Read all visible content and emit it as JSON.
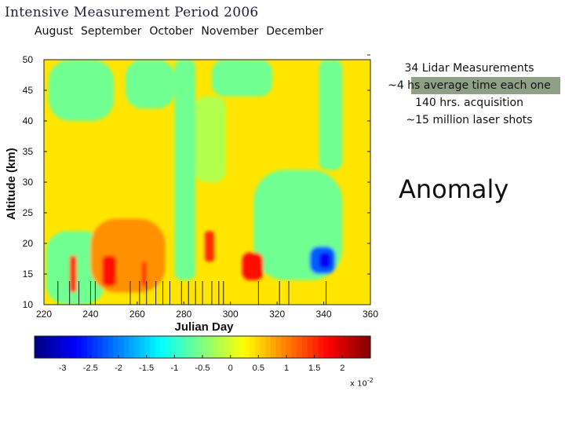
{
  "slide": {
    "title": "Intensive Measurement Period 2006",
    "months": [
      "August",
      "September",
      "October",
      "November",
      "December"
    ],
    "info_lines": [
      "34 Lidar Measurements",
      "~4 hs average time each one",
      "140 hrs. acquisition",
      "~15 million laser shots"
    ],
    "anomaly_label": "Anomaly"
  },
  "chart_data": {
    "type": "heatmap",
    "title": "",
    "xlabel": "Julian Day",
    "ylabel": "Altitude (km)",
    "xlim": [
      220,
      360
    ],
    "ylim": [
      10,
      50
    ],
    "x_ticks": [
      "220",
      "240",
      "260",
      "280",
      "300",
      "320",
      "340",
      "360"
    ],
    "y_ticks": [
      "10",
      "15",
      "20",
      "25",
      "30",
      "35",
      "40",
      "45",
      "50"
    ],
    "colorbar": {
      "ticks": [
        "-3",
        "-2.5",
        "-2",
        "-1.5",
        "-1",
        "-0.5",
        "0",
        "0.5",
        "1",
        "1.5",
        "2"
      ],
      "range": [
        -3.5,
        2.5
      ],
      "exponent_label": "x 10",
      "exponent_power": "-2"
    },
    "measurement_days": [
      226,
      231,
      235,
      240,
      242,
      257,
      261,
      264,
      268,
      271,
      274,
      279,
      282,
      285,
      288,
      292,
      295,
      297,
      312,
      321,
      325,
      341
    ],
    "background_value": 0.004,
    "features": [
      {
        "label": "upper-cyan-band",
        "day_from": 222,
        "day_to": 250,
        "alt_from": 40,
        "alt_to": 50,
        "value": -0.006
      },
      {
        "label": "upper-cyan-band-2",
        "day_from": 255,
        "day_to": 276,
        "alt_from": 42,
        "alt_to": 50,
        "value": -0.006
      },
      {
        "label": "upper-cyan-band-3",
        "day_from": 292,
        "day_to": 318,
        "alt_from": 44,
        "alt_to": 50,
        "value": -0.006
      },
      {
        "label": "mid-cyan-column",
        "day_from": 276,
        "day_to": 285,
        "alt_from": 14,
        "alt_to": 50,
        "value": -0.006
      },
      {
        "label": "right-cyan-region",
        "day_from": 310,
        "day_to": 348,
        "alt_from": 14,
        "alt_to": 32,
        "value": -0.006
      },
      {
        "label": "right-upper-cyan",
        "day_from": 338,
        "day_to": 348,
        "alt_from": 32,
        "alt_to": 50,
        "value": -0.006
      },
      {
        "label": "left-low-cyan",
        "day_from": 221,
        "day_to": 246,
        "alt_from": 10,
        "alt_to": 22,
        "value": -0.006
      },
      {
        "label": "center-green",
        "day_from": 285,
        "day_to": 298,
        "alt_from": 30,
        "alt_to": 44,
        "value": -0.002
      },
      {
        "label": "low-orange-band",
        "day_from": 240,
        "day_to": 272,
        "alt_from": 12,
        "alt_to": 24,
        "value": 0.009
      },
      {
        "label": "red-patch-a",
        "day_from": 231,
        "day_to": 234,
        "alt_from": 12,
        "alt_to": 18,
        "value": 0.015
      },
      {
        "label": "red-patch-b",
        "day_from": 245,
        "day_to": 251,
        "alt_from": 13,
        "alt_to": 18,
        "value": 0.017
      },
      {
        "label": "red-patch-c",
        "day_from": 262,
        "day_to": 264,
        "alt_from": 13,
        "alt_to": 17,
        "value": 0.015
      },
      {
        "label": "red-patch-d",
        "day_from": 289,
        "day_to": 293,
        "alt_from": 17,
        "alt_to": 22,
        "value": 0.015
      },
      {
        "label": "red-patch-e",
        "day_from": 305,
        "day_to": 314,
        "alt_from": 14,
        "alt_to": 18.5,
        "value": 0.017
      },
      {
        "label": "blue-minimum",
        "day_from": 334,
        "day_to": 345,
        "alt_from": 15,
        "alt_to": 19.5,
        "value": -0.022
      },
      {
        "label": "blue-core",
        "day_from": 338,
        "day_to": 343,
        "alt_from": 16,
        "alt_to": 18.5,
        "value": -0.028
      }
    ]
  }
}
